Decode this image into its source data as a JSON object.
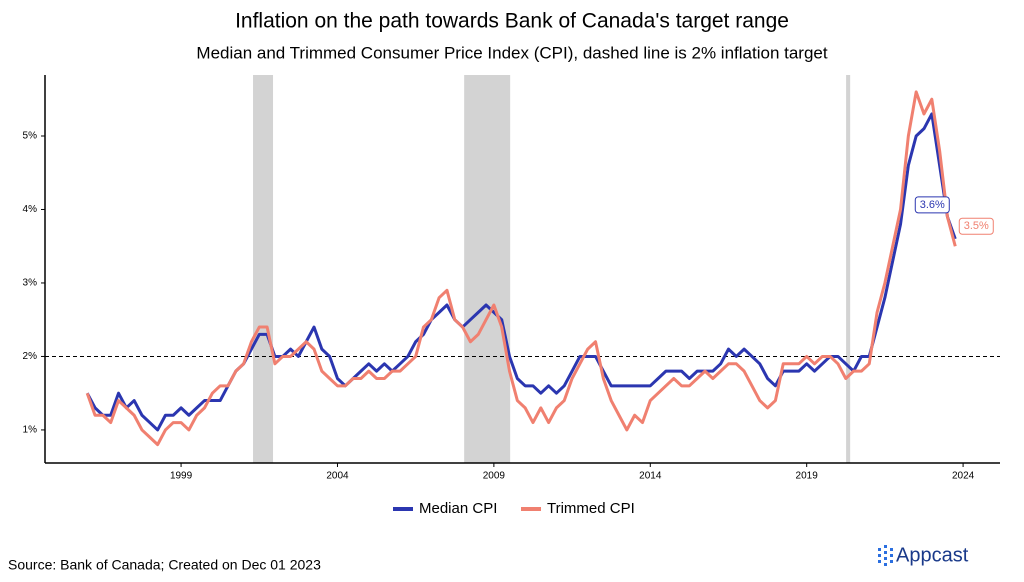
{
  "chart_data": {
    "type": "line",
    "title": "Inflation on the path towards Bank of Canada's target range",
    "subtitle": "Median and Trimmed Consumer Price Index (CPI), dashed line is 2% inflation target",
    "x": [
      1996,
      1996.25,
      1996.5,
      1996.75,
      1997,
      1997.25,
      1997.5,
      1997.75,
      1998,
      1998.25,
      1998.5,
      1998.75,
      1999,
      1999.25,
      1999.5,
      1999.75,
      2000,
      2000.25,
      2000.5,
      2000.75,
      2001,
      2001.25,
      2001.5,
      2001.75,
      2002,
      2002.25,
      2002.5,
      2002.75,
      2003,
      2003.25,
      2003.5,
      2003.75,
      2004,
      2004.25,
      2004.5,
      2004.75,
      2005,
      2005.25,
      2005.5,
      2005.75,
      2006,
      2006.25,
      2006.5,
      2006.75,
      2007,
      2007.25,
      2007.5,
      2007.75,
      2008,
      2008.25,
      2008.5,
      2008.75,
      2009,
      2009.25,
      2009.5,
      2009.75,
      2010,
      2010.25,
      2010.5,
      2010.75,
      2011,
      2011.25,
      2011.5,
      2011.75,
      2012,
      2012.25,
      2012.5,
      2012.75,
      2013,
      2013.25,
      2013.5,
      2013.75,
      2014,
      2014.25,
      2014.5,
      2014.75,
      2015,
      2015.25,
      2015.5,
      2015.75,
      2016,
      2016.25,
      2016.5,
      2016.75,
      2017,
      2017.25,
      2017.5,
      2017.75,
      2018,
      2018.25,
      2018.5,
      2018.75,
      2019,
      2019.25,
      2019.5,
      2019.75,
      2020,
      2020.25,
      2020.5,
      2020.75,
      2021,
      2021.25,
      2021.5,
      2021.75,
      2022,
      2022.25,
      2022.5,
      2022.75,
      2023,
      2023.25,
      2023.5,
      2023.75
    ],
    "series": [
      {
        "name": "Median CPI",
        "color": "#2b36b0",
        "end_label": "3.6%",
        "values": [
          1.5,
          1.3,
          1.2,
          1.2,
          1.5,
          1.3,
          1.4,
          1.2,
          1.1,
          1.0,
          1.2,
          1.2,
          1.3,
          1.2,
          1.3,
          1.4,
          1.4,
          1.4,
          1.6,
          1.8,
          1.9,
          2.1,
          2.3,
          2.3,
          2.0,
          2.0,
          2.1,
          2.0,
          2.2,
          2.4,
          2.1,
          2.0,
          1.7,
          1.6,
          1.7,
          1.8,
          1.9,
          1.8,
          1.9,
          1.8,
          1.9,
          2.0,
          2.2,
          2.3,
          2.5,
          2.6,
          2.7,
          2.5,
          2.4,
          2.5,
          2.6,
          2.7,
          2.6,
          2.5,
          2.0,
          1.7,
          1.6,
          1.6,
          1.5,
          1.6,
          1.5,
          1.6,
          1.8,
          2.0,
          2.0,
          2.0,
          1.8,
          1.6,
          1.6,
          1.6,
          1.6,
          1.6,
          1.6,
          1.7,
          1.8,
          1.8,
          1.8,
          1.7,
          1.8,
          1.8,
          1.8,
          1.9,
          2.1,
          2.0,
          2.1,
          2.0,
          1.9,
          1.7,
          1.6,
          1.8,
          1.8,
          1.8,
          1.9,
          1.8,
          1.9,
          2.0,
          2.0,
          1.9,
          1.8,
          2.0,
          2.0,
          2.4,
          2.8,
          3.3,
          3.8,
          4.6,
          5.0,
          5.1,
          5.3,
          4.6,
          3.9,
          3.6
        ]
      },
      {
        "name": "Trimmed CPI",
        "color": "#f08070",
        "end_label": "3.5%",
        "values": [
          1.5,
          1.2,
          1.2,
          1.1,
          1.4,
          1.3,
          1.2,
          1.0,
          0.9,
          0.8,
          1.0,
          1.1,
          1.1,
          1.0,
          1.2,
          1.3,
          1.5,
          1.6,
          1.6,
          1.8,
          1.9,
          2.2,
          2.4,
          2.4,
          1.9,
          2.0,
          2.0,
          2.1,
          2.2,
          2.1,
          1.8,
          1.7,
          1.6,
          1.6,
          1.7,
          1.7,
          1.8,
          1.7,
          1.7,
          1.8,
          1.8,
          1.9,
          2.0,
          2.4,
          2.5,
          2.8,
          2.9,
          2.5,
          2.4,
          2.2,
          2.3,
          2.5,
          2.7,
          2.4,
          1.8,
          1.4,
          1.3,
          1.1,
          1.3,
          1.1,
          1.3,
          1.4,
          1.7,
          1.9,
          2.1,
          2.2,
          1.7,
          1.4,
          1.2,
          1.0,
          1.2,
          1.1,
          1.4,
          1.5,
          1.6,
          1.7,
          1.6,
          1.6,
          1.7,
          1.8,
          1.7,
          1.8,
          1.9,
          1.9,
          1.8,
          1.6,
          1.4,
          1.3,
          1.4,
          1.9,
          1.9,
          1.9,
          2.0,
          1.9,
          2.0,
          2.0,
          1.9,
          1.7,
          1.8,
          1.8,
          1.9,
          2.6,
          3.0,
          3.5,
          4.0,
          5.0,
          5.6,
          5.3,
          5.5,
          4.8,
          3.9,
          3.5
        ]
      }
    ],
    "target": 2,
    "shaded_periods": [
      [
        2001.3,
        2001.94
      ],
      [
        2008.05,
        2009.52
      ],
      [
        2020.26,
        2020.39
      ]
    ],
    "xlim": [
      1994.65,
      2025.18
    ],
    "xticks": [
      1999,
      2004,
      2009,
      2014,
      2019,
      2024
    ],
    "ylim": [
      0.55,
      5.83
    ],
    "yticks": [
      {
        "value": 1,
        "label": "1%"
      },
      {
        "value": 2,
        "label": "2%"
      },
      {
        "value": 3,
        "label": "3%"
      },
      {
        "value": 4,
        "label": "4%"
      },
      {
        "value": 5,
        "label": "5%"
      }
    ],
    "legend": "bottom",
    "source": "Source: Bank of Canada; Created on Dec 01 2023",
    "logo": "Appcast"
  }
}
